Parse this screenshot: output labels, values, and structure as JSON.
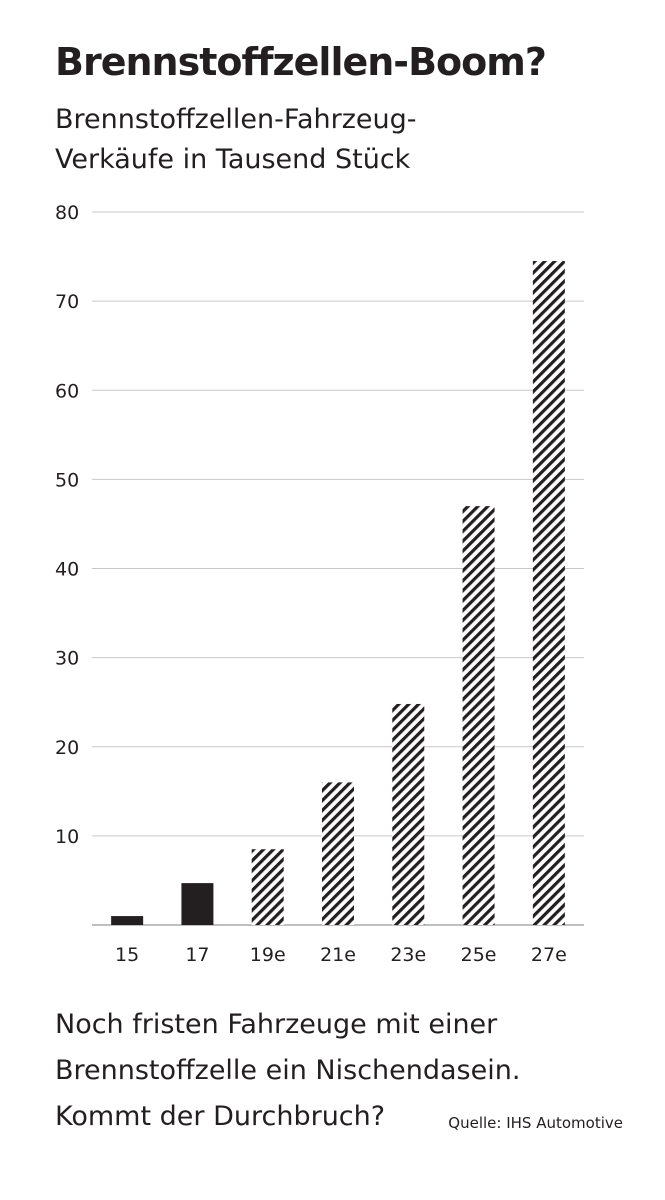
{
  "title": "Brennstoffzellen-Boom?",
  "subtitle_line1": "Brennstoffzellen-Fahrzeug-",
  "subtitle_line2": "Verkäufe in Tausend Stück",
  "caption_line1": "Noch fristen Fahrzeuge mit einer",
  "caption_line2": "Brennstoffzelle ein Nischendasein.",
  "caption_line3": "Kommt der Durchbruch?",
  "source": "Quelle: IHS Automotive",
  "colors": {
    "bar": "#231f20",
    "grid": "#c8c8c8",
    "text": "#231f20"
  },
  "chart_data": {
    "type": "bar",
    "categories": [
      "15",
      "17",
      "19e",
      "21e",
      "23e",
      "25e",
      "27e"
    ],
    "values": [
      1,
      4.7,
      8.5,
      16,
      24.8,
      47,
      74.5
    ],
    "estimated": [
      false,
      false,
      true,
      true,
      true,
      true,
      true
    ],
    "ylim": [
      0,
      80
    ],
    "yticks": [
      10,
      20,
      30,
      40,
      50,
      60,
      70,
      80
    ],
    "grid": true
  }
}
